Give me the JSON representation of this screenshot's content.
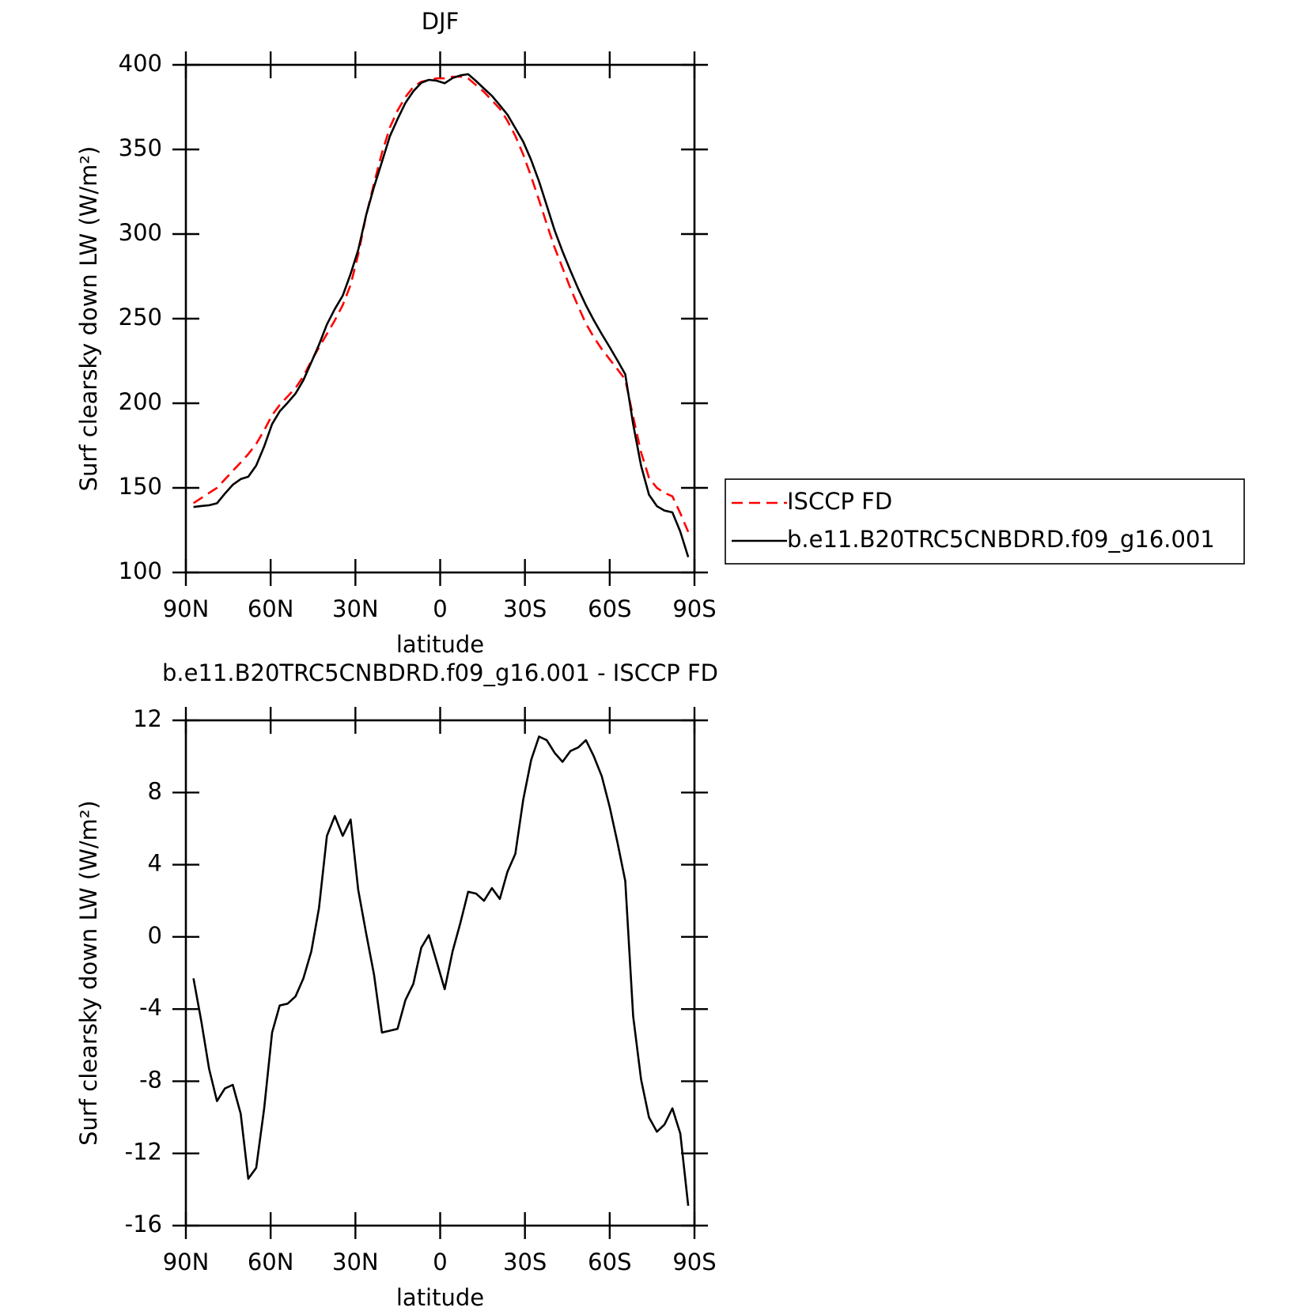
{
  "chart_data": [
    {
      "type": "line",
      "title": "DJF",
      "xlabel": "latitude",
      "ylabel": "Surf clearsky down LW (W/m²)",
      "x": [
        87.3,
        84.5,
        81.8,
        79.0,
        76.2,
        73.4,
        70.6,
        67.9,
        65.1,
        62.3,
        59.5,
        56.8,
        54.0,
        51.2,
        48.4,
        45.6,
        42.9,
        40.1,
        37.3,
        34.5,
        31.7,
        29.0,
        26.2,
        23.4,
        20.6,
        17.8,
        15.1,
        12.3,
        9.5,
        6.7,
        4.0,
        1.2,
        -1.6,
        -4.4,
        -7.2,
        -9.9,
        -12.7,
        -15.5,
        -18.3,
        -21.1,
        -23.8,
        -26.6,
        -29.4,
        -32.2,
        -35.0,
        -37.7,
        -40.5,
        -43.3,
        -46.1,
        -48.9,
        -51.6,
        -54.4,
        -57.2,
        -60.0,
        -62.8,
        -65.5,
        -68.3,
        -71.1,
        -73.9,
        -76.7,
        -79.4,
        -82.2,
        -85.0,
        -87.8
      ],
      "series": [
        {
          "name": "ISCCP FD",
          "color": "#ff0000",
          "line_style": "dashed",
          "values": [
            141,
            144,
            147,
            150,
            155,
            160,
            165,
            170,
            176,
            184,
            193,
            199,
            204,
            209,
            216,
            225,
            233,
            241,
            249,
            258,
            270,
            288,
            311,
            330,
            348,
            363,
            373,
            381,
            387,
            390,
            391,
            392,
            392,
            393,
            393,
            392,
            388,
            384,
            379,
            374,
            367,
            358,
            347,
            334,
            320,
            306,
            292,
            280,
            268,
            257,
            247,
            239,
            232,
            226,
            220,
            214,
            192,
            171,
            156,
            150,
            147,
            145,
            135,
            124
          ]
        },
        {
          "name": "b.e11.B20TRC5CNBDRD.f09_g16.001",
          "color": "#000000",
          "line_style": "solid",
          "values": [
            138.7,
            139.3,
            139.7,
            140.9,
            146.6,
            151.8,
            155.2,
            156.6,
            163.2,
            174.5,
            187.7,
            195.2,
            200.3,
            205.7,
            213.7,
            224.2,
            234.6,
            246.6,
            255.7,
            263.6,
            276.5,
            290.6,
            311.2,
            327.9,
            342.7,
            357.8,
            367.9,
            377.5,
            384.4,
            389.4,
            391.1,
            390.6,
            389.1,
            392.2,
            393.8,
            394.5,
            390.4,
            386,
            381.7,
            376.1,
            370.6,
            362.6,
            354.6,
            343.8,
            331.1,
            316.9,
            302.2,
            289.7,
            278.3,
            267.5,
            257.9,
            249,
            240.9,
            233.2,
            225.2,
            217.1,
            187.6,
            163.1,
            146,
            139.2,
            136.6,
            135.5,
            124.1,
            109.1
          ]
        }
      ],
      "xlim": [
        90,
        -90
      ],
      "xticks": [
        {
          "value": 90,
          "label": "90N"
        },
        {
          "value": 60,
          "label": "60N"
        },
        {
          "value": 30,
          "label": "30N"
        },
        0,
        {
          "value": -30,
          "label": "30S"
        },
        {
          "value": -60,
          "label": "60S"
        },
        {
          "value": -90,
          "label": "90S"
        }
      ],
      "ylim": [
        100,
        400
      ],
      "yticks": [
        100,
        150,
        200,
        250,
        300,
        350,
        400
      ],
      "legend": "right"
    },
    {
      "type": "line",
      "title": "b.e11.B20TRC5CNBDRD.f09_g16.001 - ISCCP FD",
      "xlabel": "latitude",
      "ylabel": "Surf clearsky down LW (W/m²)",
      "x": [
        87.3,
        84.5,
        81.8,
        79.0,
        76.2,
        73.4,
        70.6,
        67.9,
        65.1,
        62.3,
        59.5,
        56.8,
        54.0,
        51.2,
        48.4,
        45.6,
        42.9,
        40.1,
        37.3,
        34.5,
        31.7,
        29.0,
        26.2,
        23.4,
        20.6,
        17.8,
        15.1,
        12.3,
        9.5,
        6.7,
        4.0,
        1.2,
        -1.6,
        -4.4,
        -7.2,
        -9.9,
        -12.7,
        -15.5,
        -18.3,
        -21.1,
        -23.8,
        -26.6,
        -29.4,
        -32.2,
        -35.0,
        -37.7,
        -40.5,
        -43.3,
        -46.1,
        -48.9,
        -51.6,
        -54.4,
        -57.2,
        -60.0,
        -62.8,
        -65.5,
        -68.3,
        -71.1,
        -73.9,
        -76.7,
        -79.4,
        -82.2,
        -85.0,
        -87.8
      ],
      "color": "#000000",
      "values": [
        -2.3,
        -4.7,
        -7.3,
        -9.1,
        -8.4,
        -8.2,
        -9.8,
        -13.4,
        -12.8,
        -9.5,
        -5.3,
        -3.8,
        -3.7,
        -3.3,
        -2.3,
        -0.8,
        1.6,
        5.6,
        6.7,
        5.6,
        6.5,
        2.6,
        0.2,
        -2.1,
        -5.3,
        -5.2,
        -5.1,
        -3.5,
        -2.6,
        -0.6,
        0.1,
        -1.4,
        -2.9,
        -0.8,
        0.8,
        2.5,
        2.4,
        2.0,
        2.7,
        2.1,
        3.6,
        4.6,
        7.6,
        9.8,
        11.1,
        10.9,
        10.2,
        9.7,
        10.3,
        10.5,
        10.9,
        10.0,
        8.9,
        7.2,
        5.2,
        3.1,
        -4.4,
        -7.9,
        -10.0,
        -10.8,
        -10.4,
        -9.5,
        -10.9,
        -14.9
      ],
      "xlim": [
        90,
        -90
      ],
      "xticks": [
        {
          "value": 90,
          "label": "90N"
        },
        {
          "value": 60,
          "label": "60N"
        },
        {
          "value": 30,
          "label": "30N"
        },
        0,
        {
          "value": -30,
          "label": "30S"
        },
        {
          "value": -60,
          "label": "60S"
        },
        {
          "value": -90,
          "label": "90S"
        }
      ],
      "ylim": [
        -16,
        12
      ],
      "yticks": [
        -16,
        -12,
        -8,
        -4,
        0,
        4,
        8,
        12
      ]
    }
  ]
}
